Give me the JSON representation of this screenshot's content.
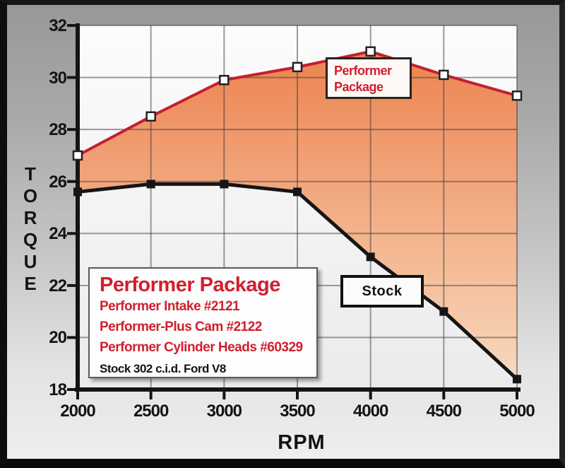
{
  "colors": {
    "performer_line": "#c22031",
    "performer_fill_top": "#ed8350",
    "performer_fill_bottom": "#f8d9bd",
    "stock_line": "#151515",
    "red_text": "#d01f2e",
    "axis": "#141414",
    "grid": "rgba(60,60,60,0.5)",
    "plot_bg_top": "#fcfcfc",
    "plot_bg_bottom": "#ebebeb"
  },
  "chart_data": {
    "type": "line",
    "x": [
      2000,
      2500,
      3000,
      3500,
      4000,
      4500,
      5000
    ],
    "xlim": [
      2000,
      5000
    ],
    "ylim": [
      18,
      32
    ],
    "yticks": [
      32,
      30,
      28,
      26,
      24,
      22,
      20,
      18
    ],
    "xlabel": "RPM",
    "ylabel": "TORQUE",
    "grid": true,
    "legend_position": "in-plot boxes",
    "series": [
      {
        "name": "Performer Package",
        "values": [
          27.0,
          28.5,
          29.9,
          30.4,
          31.0,
          30.1,
          29.3
        ],
        "marker": "open-square",
        "fill": "area between this curve and Stock curve, orange gradient"
      },
      {
        "name": "Stock",
        "values": [
          25.6,
          25.9,
          25.9,
          25.6,
          23.1,
          21.0,
          18.4
        ],
        "marker": "filled-square"
      }
    ]
  },
  "axis": {
    "x_label": "RPM",
    "y_label": "TORQUE"
  },
  "annotations": {
    "performer_callout_line1": "Performer",
    "performer_callout_line2": "Package",
    "stock_callout": "Stock"
  },
  "legend_box": {
    "title": "Performer Package",
    "items": [
      "Performer Intake #2121",
      "Performer-Plus Cam #2122",
      "Performer Cylinder Heads  #60329"
    ],
    "footnote": "Stock 302 c.i.d. Ford V8"
  }
}
